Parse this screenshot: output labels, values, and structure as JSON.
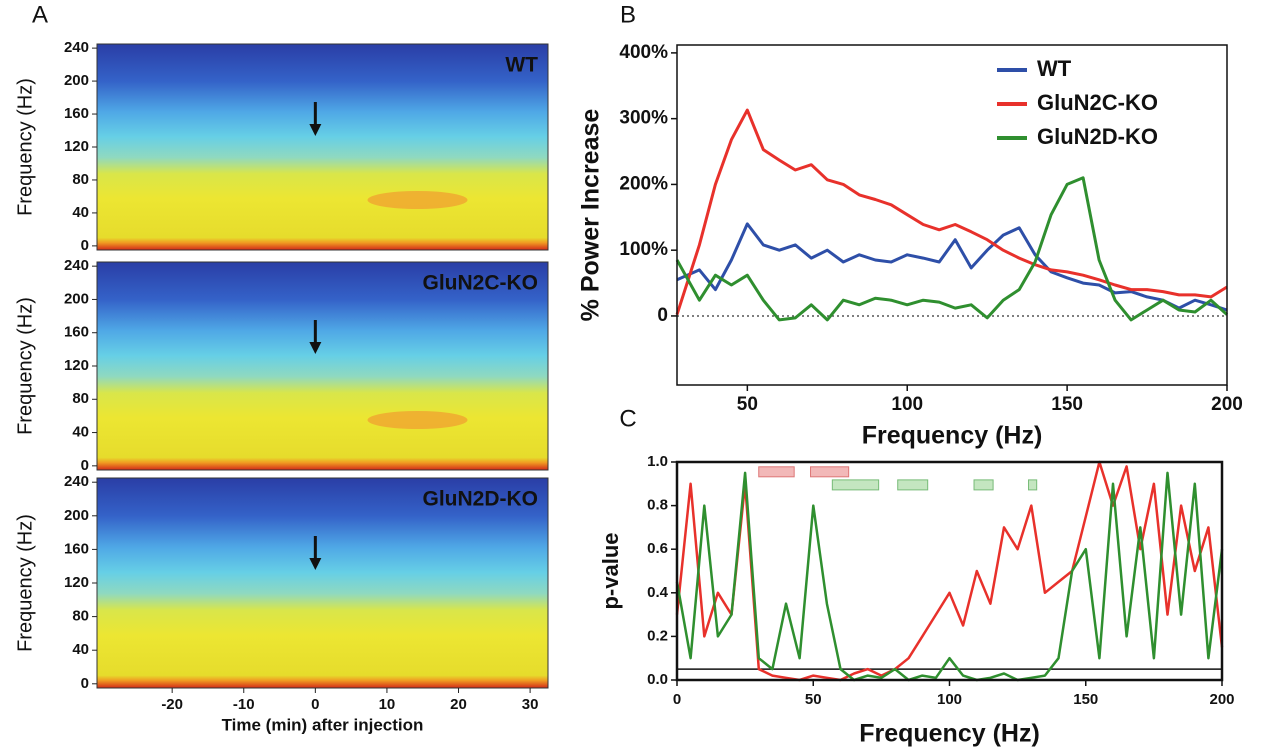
{
  "chart_data": [
    {
      "type": "spectrogram",
      "panel": "A",
      "label": "WT",
      "ylabel": "Frequency (Hz)",
      "xlim": [
        -30.5,
        32.5
      ],
      "ylim": [
        -5,
        245
      ],
      "yticks": [
        0,
        40,
        80,
        120,
        160,
        200,
        240
      ],
      "arrow_at": 0
    },
    {
      "type": "spectrogram",
      "label": "GluN2C-KO",
      "ylabel": "Frequency (Hz)",
      "xlim": [
        -30.5,
        32.5
      ],
      "ylim": [
        -5,
        245
      ],
      "yticks": [
        0,
        40,
        80,
        120,
        160,
        200,
        240
      ],
      "arrow_at": 0
    },
    {
      "type": "spectrogram",
      "label": "GluN2D-KO",
      "ylabel": "Frequency (Hz)",
      "xlabel": "Time (min) after injection",
      "xlim": [
        -30.5,
        32.5
      ],
      "ylim": [
        -5,
        245
      ],
      "yticks": [
        0,
        40,
        80,
        120,
        160,
        200,
        240
      ],
      "xticks": [
        -20,
        -10,
        0,
        10,
        20,
        30
      ],
      "arrow_at": 0
    },
    {
      "type": "line",
      "panel": "B",
      "xlabel": "Frequency (Hz)",
      "ylabel": "% Power Increase",
      "xlim": [
        28,
        200
      ],
      "ylim": [
        -105,
        412
      ],
      "xticks": [
        50,
        100,
        150,
        200
      ],
      "yticks": [
        0,
        {
          "value": 100,
          "label": "100%"
        },
        {
          "value": 200,
          "label": "200%"
        },
        {
          "value": 300,
          "label": "300%"
        },
        {
          "value": 400,
          "label": "400%"
        }
      ],
      "reference_lines": [
        0
      ],
      "legend": "upper right",
      "x": [
        28,
        35,
        40,
        45,
        50,
        55,
        60,
        65,
        70,
        75,
        80,
        85,
        90,
        95,
        100,
        105,
        110,
        115,
        120,
        125,
        130,
        135,
        140,
        145,
        150,
        155,
        160,
        165,
        170,
        175,
        180,
        185,
        190,
        195,
        200
      ],
      "series": [
        {
          "name": "WT",
          "color": "#2e4fa8",
          "values": [
            55,
            70,
            40,
            85,
            140,
            108,
            100,
            108,
            88,
            100,
            82,
            93,
            85,
            82,
            93,
            88,
            82,
            116,
            73,
            100,
            123,
            134,
            93,
            67,
            58,
            50,
            47,
            35,
            37,
            29,
            24,
            12,
            24,
            17,
            9
          ]
        },
        {
          "name": "GluN2C-KO",
          "color": "#e8312b",
          "values": [
            2,
            108,
            200,
            268,
            313,
            253,
            237,
            222,
            230,
            207,
            200,
            184,
            177,
            169,
            154,
            139,
            131,
            139,
            128,
            116,
            100,
            88,
            78,
            70,
            67,
            62,
            55,
            47,
            40,
            40,
            37,
            32,
            32,
            29,
            44
          ]
        },
        {
          "name": "GluN2D-KO",
          "color": "#2f8f2f",
          "values": [
            85,
            24,
            62,
            47,
            62,
            24,
            -6,
            -3,
            17,
            -6,
            24,
            17,
            27,
            24,
            17,
            24,
            21,
            12,
            17,
            -3,
            24,
            40,
            82,
            154,
            200,
            210,
            85,
            24,
            -6,
            9,
            24,
            9,
            6,
            24,
            2
          ]
        }
      ]
    },
    {
      "type": "line",
      "panel": "C",
      "xlabel": "Frequency (Hz)",
      "ylabel": "p-value",
      "xlim": [
        0,
        200
      ],
      "ylim": [
        0,
        1
      ],
      "xticks": [
        0,
        50,
        100,
        150,
        200
      ],
      "yticks": [
        {
          "value": 0,
          "label": "0.0"
        },
        0.2,
        0.4,
        0.6,
        0.8,
        {
          "value": 1,
          "label": "1.0"
        }
      ],
      "reference_lines": [
        0.05
      ],
      "x": [
        0,
        5,
        10,
        15,
        20,
        25,
        30,
        35,
        40,
        45,
        50,
        55,
        60,
        65,
        70,
        75,
        80,
        85,
        90,
        95,
        100,
        105,
        110,
        115,
        120,
        125,
        130,
        135,
        140,
        145,
        150,
        155,
        160,
        165,
        170,
        175,
        180,
        185,
        190,
        195,
        200
      ],
      "series": [
        {
          "color": "#e8312b",
          "values": [
            0.3,
            0.9,
            0.2,
            0.4,
            0.3,
            0.9,
            0.05,
            0.02,
            0.01,
            0,
            0.02,
            0.01,
            0,
            0.03,
            0.05,
            0.02,
            0.05,
            0.1,
            0.2,
            0.3,
            0.4,
            0.25,
            0.5,
            0.35,
            0.7,
            0.6,
            0.8,
            0.4,
            0.45,
            0.5,
            0.75,
            1,
            0.8,
            0.98,
            0.6,
            0.9,
            0.3,
            0.8,
            0.5,
            0.7,
            0.15
          ]
        },
        {
          "color": "#2f8f2f",
          "values": [
            0.45,
            0.1,
            0.8,
            0.2,
            0.3,
            0.95,
            0.1,
            0.05,
            0.35,
            0.1,
            0.8,
            0.35,
            0.05,
            0,
            0.02,
            0.01,
            0.05,
            0,
            0.02,
            0.01,
            0.1,
            0.02,
            0,
            0.01,
            0.03,
            0,
            0.01,
            0.02,
            0.1,
            0.5,
            0.6,
            0.1,
            0.9,
            0.2,
            0.7,
            0.1,
            0.95,
            0.3,
            0.9,
            0.1,
            0.6
          ]
        }
      ],
      "significance_bars": [
        {
          "color": "#f2b8b8",
          "start": 30,
          "end": 43,
          "y": 0.955
        },
        {
          "color": "#f2b8b8",
          "start": 49,
          "end": 63,
          "y": 0.955
        },
        {
          "color": "#c4e6c0",
          "start": 57,
          "end": 74,
          "y": 0.895
        },
        {
          "color": "#c4e6c0",
          "start": 81,
          "end": 92,
          "y": 0.895
        },
        {
          "color": "#c4e6c0",
          "start": 109,
          "end": 116,
          "y": 0.895
        },
        {
          "color": "#c4e6c0",
          "start": 129,
          "end": 132,
          "y": 0.895
        }
      ]
    }
  ]
}
